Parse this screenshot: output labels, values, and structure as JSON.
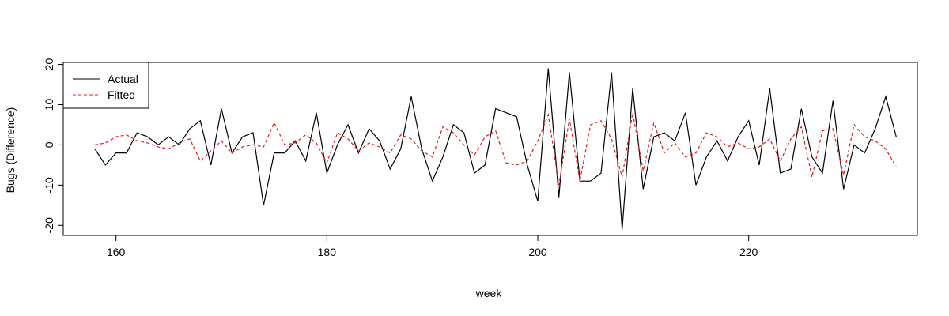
{
  "chart_data": {
    "type": "line",
    "title": "",
    "xlabel": "week",
    "ylabel": "Bugs (Difference)",
    "xlim": [
      155,
      236
    ],
    "ylim": [
      -22.5,
      20.5
    ],
    "xticks": [
      160,
      180,
      200,
      220
    ],
    "yticks": [
      -20,
      -10,
      0,
      10,
      20
    ],
    "grid": false,
    "legend_position": "top-left",
    "x": [
      158,
      159,
      160,
      161,
      162,
      163,
      164,
      165,
      166,
      167,
      168,
      169,
      170,
      171,
      172,
      173,
      174,
      175,
      176,
      177,
      178,
      179,
      180,
      181,
      182,
      183,
      184,
      185,
      186,
      187,
      188,
      189,
      190,
      191,
      192,
      193,
      194,
      195,
      196,
      197,
      198,
      199,
      200,
      201,
      202,
      203,
      204,
      205,
      206,
      207,
      208,
      209,
      210,
      211,
      212,
      213,
      214,
      215,
      216,
      217,
      218,
      219,
      220,
      221,
      222,
      223,
      224,
      225,
      226,
      227,
      228,
      229,
      230,
      231,
      232,
      233,
      234
    ],
    "series": [
      {
        "name": "Actual",
        "color": "#000000",
        "dash": "solid",
        "values": [
          -1,
          -5,
          -2,
          -2,
          3,
          2,
          0,
          2,
          0,
          4,
          6,
          -5,
          9,
          -2,
          2,
          3,
          -15,
          -2,
          -2,
          1,
          -4,
          8,
          -7,
          0,
          5,
          -2,
          4,
          1,
          -6,
          -1,
          12,
          -1,
          -9,
          -3,
          5,
          3,
          -7,
          -5,
          9,
          8,
          7,
          -5,
          -14,
          19,
          -13,
          18,
          -9,
          -9,
          -7,
          18,
          -21,
          14,
          -11,
          2,
          3,
          1,
          8,
          -10,
          -3,
          1,
          -4,
          2,
          6,
          -5,
          14,
          -7,
          -6,
          9,
          -3,
          -7,
          11,
          -11,
          0,
          -2,
          4,
          12,
          2
        ]
      },
      {
        "name": "Fitted",
        "color": "#e41a1c",
        "dash": "dashed",
        "values": [
          0,
          0.5,
          2,
          2.5,
          1,
          0.5,
          -0.5,
          -1,
          0.5,
          1.5,
          -4,
          -1.5,
          1,
          -2,
          -0.5,
          0,
          -0.5,
          5.5,
          0,
          0.5,
          2.5,
          0.5,
          -4.5,
          3,
          1.5,
          -1.5,
          0.5,
          -0.5,
          -2,
          2.5,
          1.5,
          -1.5,
          -3,
          4.5,
          3,
          0,
          -2.5,
          2,
          3.5,
          -4.5,
          -5,
          -4,
          1,
          7.5,
          -10,
          6.5,
          -9,
          5,
          6,
          1.5,
          -8,
          8,
          -6.5,
          5.5,
          -2,
          0.5,
          -3,
          -2,
          3,
          2,
          -0.5,
          0.5,
          -1,
          -0.5,
          1.5,
          -4,
          1.5,
          4.5,
          -8,
          3.5,
          4,
          -7.5,
          5,
          2,
          1,
          -1,
          -5.5
        ]
      }
    ]
  }
}
